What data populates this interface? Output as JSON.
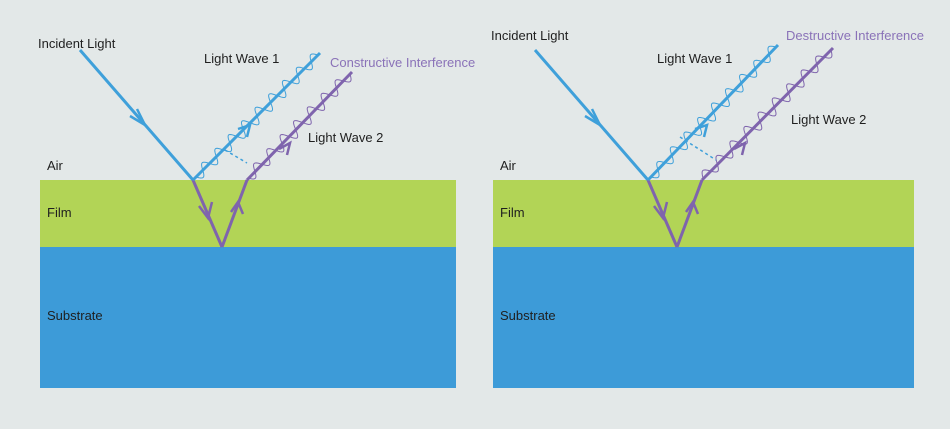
{
  "colors": {
    "background": "#e3e8e8",
    "film": "#b2d456",
    "substrate": "#3d9bd8",
    "ray_blue": "#3fa0da",
    "ray_purple": "#7f64ad"
  },
  "panels": [
    {
      "id": "constructive",
      "incident_label": "Incident Light",
      "wave1_label": "Light Wave 1",
      "wave2_label": "Light Wave 2",
      "interference_label": "Constructive Interference",
      "layers": {
        "air": "Air",
        "film": "Film",
        "substrate": "Substrate"
      }
    },
    {
      "id": "destructive",
      "incident_label": "Incident Light",
      "wave1_label": "Light Wave 1",
      "wave2_label": "Light Wave 2",
      "interference_label": "Destructive Interference",
      "layers": {
        "air": "Air",
        "film": "Film",
        "substrate": "Substrate"
      }
    }
  ]
}
